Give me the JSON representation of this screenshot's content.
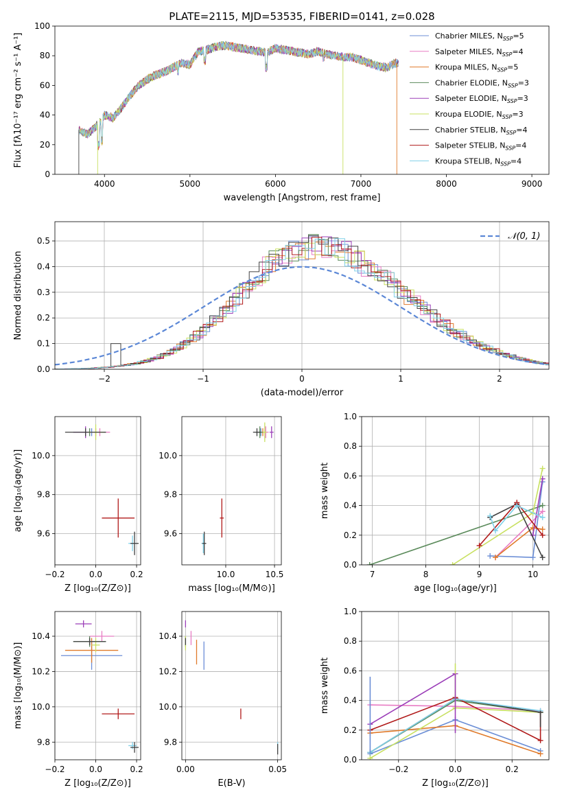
{
  "figure": {
    "title": "PLATE=2115, MJD=53535, FIBERID=0141, z=0.028"
  },
  "colors": [
    "#6b8ed6",
    "#e87cc4",
    "#e07a2a",
    "#5a8a5a",
    "#9b3eb8",
    "#c8e060",
    "#404040",
    "#b01818",
    "#7fd0e8"
  ],
  "legend": {
    "entries": [
      {
        "name": "Chabrier MILES, N",
        "sub": "SSP",
        "suffix": "=5"
      },
      {
        "name": "Salpeter MILES, N",
        "sub": "SSP",
        "suffix": "=4"
      },
      {
        "name": "Kroupa MILES, N",
        "sub": "SSP",
        "suffix": "=5"
      },
      {
        "name": "Chabrier ELODIE, N",
        "sub": "SSP",
        "suffix": "=3"
      },
      {
        "name": "Salpeter ELODIE, N",
        "sub": "SSP",
        "suffix": "=3"
      },
      {
        "name": "Kroupa ELODIE, N",
        "sub": "SSP",
        "suffix": "=3"
      },
      {
        "name": "Chabrier STELIB, N",
        "sub": "SSP",
        "suffix": "=4"
      },
      {
        "name": "Salpeter STELIB, N",
        "sub": "SSP",
        "suffix": "=4"
      },
      {
        "name": "Kroupa STELIB, N",
        "sub": "SSP",
        "suffix": "=4"
      }
    ]
  },
  "chart_data": [
    {
      "id": "spectrum",
      "type": "line",
      "xlabel": "wavelength [Angstrom, rest frame]",
      "ylabel": "Flux [fλ10⁻¹⁷ erg cm⁻² s⁻¹ A⁻¹]",
      "xlim": [
        3420,
        9200
      ],
      "ylim": [
        0,
        100
      ],
      "xticks": [
        "4000",
        "5000",
        "6000",
        "7000",
        "8000",
        "9000"
      ],
      "yticks": [
        "0",
        "20",
        "40",
        "60",
        "80",
        "100"
      ],
      "x": [
        3700,
        3800,
        3900,
        4000,
        4100,
        4200,
        4300,
        4400,
        4500,
        4600,
        4700,
        4800,
        4900,
        5000,
        5100,
        5200,
        5300,
        5400,
        5500,
        5600,
        5700,
        5800,
        5900,
        6000,
        6100,
        6200,
        6300,
        6400,
        6500,
        6600,
        6700,
        6800,
        6900,
        7000,
        7100,
        7200,
        7300,
        7400
      ],
      "y": [
        30,
        27,
        32,
        40,
        38,
        45,
        53,
        60,
        64,
        67,
        69,
        72,
        75,
        74,
        83,
        84,
        86,
        87,
        86,
        85,
        84,
        83,
        82,
        85,
        84,
        83,
        82,
        81,
        83,
        81,
        80,
        79,
        79,
        77,
        75,
        73,
        72,
        75
      ],
      "dropouts": [
        {
          "x": 3700,
          "series": 6
        },
        {
          "x": 3920,
          "series": 5
        },
        {
          "x": 6790,
          "series": 5
        },
        {
          "x": 7420,
          "series": 2
        }
      ]
    },
    {
      "id": "residuals",
      "type": "line",
      "xlabel": "(data-model)/error",
      "ylabel": "Normed distribution",
      "xlim": [
        -2.5,
        2.5
      ],
      "ylim": [
        0,
        0.575
      ],
      "xticks": [
        "−2",
        "−1",
        "0",
        "1",
        "2"
      ],
      "xtick_values": [
        -2,
        -1,
        0,
        1,
        2
      ],
      "yticks": [
        "0.0",
        "0.1",
        "0.2",
        "0.3",
        "0.4",
        "0.5"
      ],
      "ytick_values": [
        0,
        0.1,
        0.2,
        0.3,
        0.4,
        0.5
      ],
      "gaussian_label": "𝒩(0, 1)",
      "bin_width": 0.1
    },
    {
      "id": "age-vs-Z",
      "type": "scatter",
      "xlabel": "Z [log₁₀(Z/Z⊙)]",
      "ylabel": "age  [log₁₀(age/yr)]",
      "xlim": [
        -0.2,
        0.22
      ],
      "ylim": [
        9.44,
        10.2
      ],
      "xticks": [
        "−0.2",
        "0.0",
        "0.2"
      ],
      "xtick_values": [
        -0.2,
        0,
        0.2
      ],
      "yticks": [
        "9.6",
        "9.8",
        "10.0"
      ],
      "ytick_values": [
        9.6,
        9.8,
        10.0
      ],
      "points": [
        {
          "x": -0.02,
          "y": 10.12,
          "xerr": 0.06,
          "yerr": 0.02,
          "c": 0
        },
        {
          "x": 0.02,
          "y": 10.12,
          "xerr": 0.05,
          "yerr": 0.02,
          "c": 1
        },
        {
          "x": 0.0,
          "y": 10.12,
          "xerr": 0.04,
          "yerr": 0.02,
          "c": 2
        },
        {
          "x": -0.03,
          "y": 10.12,
          "xerr": 0.08,
          "yerr": 0.02,
          "c": 3
        },
        {
          "x": -0.05,
          "y": 10.12,
          "xerr": 0.06,
          "yerr": 0.03,
          "c": 4
        },
        {
          "x": 0.0,
          "y": 10.12,
          "xerr": 0.04,
          "yerr": 0.04,
          "c": 5
        },
        {
          "x": -0.05,
          "y": 10.12,
          "xerr": 0.1,
          "yerr": 0.02,
          "c": 6
        },
        {
          "x": 0.11,
          "y": 9.68,
          "xerr": 0.08,
          "yerr": 0.1,
          "c": 7
        },
        {
          "x": 0.18,
          "y": 9.55,
          "xerr": 0.02,
          "yerr": 0.04,
          "c": 8
        },
        {
          "x": 0.19,
          "y": 9.55,
          "xerr": 0.02,
          "yerr": 0.06,
          "c": 6
        }
      ]
    },
    {
      "id": "age-vs-mass",
      "type": "scatter",
      "xlabel": "mass [log₁₀(M/M⊙)]",
      "ylabel": "",
      "xlim": [
        9.55,
        10.57
      ],
      "ylim": [
        9.44,
        10.2
      ],
      "xticks": [
        "10.0",
        "10.5"
      ],
      "xtick_values": [
        10.0,
        10.5
      ],
      "yticks": [
        "9.6",
        "9.8",
        "10.0"
      ],
      "ytick_values": [
        9.6,
        9.8,
        10.0
      ],
      "points": [
        {
          "x": 10.36,
          "y": 10.12,
          "xerr": 0.05,
          "yerr": 0.02,
          "c": 0
        },
        {
          "x": 10.41,
          "y": 10.12,
          "xerr": 0.03,
          "yerr": 0.03,
          "c": 1
        },
        {
          "x": 10.38,
          "y": 10.12,
          "xerr": 0.03,
          "yerr": 0.02,
          "c": 2
        },
        {
          "x": 10.35,
          "y": 10.12,
          "xerr": 0.04,
          "yerr": 0.03,
          "c": 3
        },
        {
          "x": 10.47,
          "y": 10.12,
          "xerr": 0.02,
          "yerr": 0.03,
          "c": 4
        },
        {
          "x": 10.4,
          "y": 10.12,
          "xerr": 0.02,
          "yerr": 0.05,
          "c": 5
        },
        {
          "x": 10.32,
          "y": 10.12,
          "xerr": 0.04,
          "yerr": 0.02,
          "c": 6
        },
        {
          "x": 9.96,
          "y": 9.68,
          "xerr": 0.02,
          "yerr": 0.1,
          "c": 7
        },
        {
          "x": 9.77,
          "y": 9.55,
          "xerr": 0.02,
          "yerr": 0.05,
          "c": 8
        },
        {
          "x": 9.78,
          "y": 9.55,
          "xerr": 0.02,
          "yerr": 0.06,
          "c": 6
        }
      ]
    },
    {
      "id": "massweight-vs-age",
      "type": "line",
      "xlabel": "age  [log₁₀(age/yr)]",
      "ylabel": "mass weight",
      "xlim": [
        6.8,
        10.3
      ],
      "ylim": [
        0,
        1
      ],
      "xticks": [
        "7",
        "8",
        "9",
        "10"
      ],
      "xtick_values": [
        7,
        8,
        9,
        10
      ],
      "yticks": [
        "0.0",
        "0.2",
        "0.4",
        "0.6",
        "0.8",
        "1.0"
      ],
      "ytick_values": [
        0,
        0.2,
        0.4,
        0.6,
        0.8,
        1.0
      ],
      "series": [
        {
          "c": 0,
          "x": [
            9.2,
            10.0,
            10.18
          ],
          "y": [
            0.06,
            0.05,
            0.56
          ]
        },
        {
          "c": 1,
          "x": [
            9.3,
            10.18
          ],
          "y": [
            0.05,
            0.36
          ]
        },
        {
          "c": 2,
          "x": [
            9.3,
            10.0,
            10.18
          ],
          "y": [
            0.05,
            0.25,
            0.24
          ]
        },
        {
          "c": 3,
          "x": [
            6.95,
            10.18
          ],
          "y": [
            0.0,
            0.4
          ]
        },
        {
          "c": 4,
          "x": [
            10.0,
            10.18
          ],
          "y": [
            0.2,
            0.58
          ]
        },
        {
          "c": 5,
          "x": [
            8.5,
            10.0,
            10.18
          ],
          "y": [
            0.0,
            0.35,
            0.65
          ]
        },
        {
          "c": 6,
          "x": [
            9.2,
            9.7,
            10.18
          ],
          "y": [
            0.32,
            0.41,
            0.05
          ]
        },
        {
          "c": 7,
          "x": [
            9.0,
            9.7,
            10.18
          ],
          "y": [
            0.13,
            0.42,
            0.2
          ]
        },
        {
          "c": 8,
          "x": [
            9.2,
            9.3,
            9.7,
            10.18
          ],
          "y": [
            0.33,
            0.23,
            0.4,
            0.32
          ]
        }
      ]
    },
    {
      "id": "mass-vs-Z",
      "type": "scatter",
      "xlabel": "Z [log₁₀(Z/Z⊙)]",
      "ylabel": "mass [log₁₀(M/M⊙)]",
      "xlim": [
        -0.2,
        0.22
      ],
      "ylim": [
        9.7,
        10.54
      ],
      "xticks": [
        "−0.2",
        "0.0",
        "0.2"
      ],
      "xtick_values": [
        -0.2,
        0,
        0.2
      ],
      "yticks": [
        "9.8",
        "10.0",
        "10.2",
        "10.4"
      ],
      "ytick_values": [
        9.8,
        10.0,
        10.2,
        10.4
      ],
      "points": [
        {
          "x": -0.02,
          "y": 10.29,
          "xerr": 0.15,
          "yerr": 0.08,
          "c": 0
        },
        {
          "x": 0.03,
          "y": 10.4,
          "xerr": 0.06,
          "yerr": 0.03,
          "c": 1
        },
        {
          "x": -0.02,
          "y": 10.32,
          "xerr": 0.13,
          "yerr": 0.07,
          "c": 2
        },
        {
          "x": -0.03,
          "y": 10.37,
          "xerr": 0.08,
          "yerr": 0.03,
          "c": 3
        },
        {
          "x": -0.06,
          "y": 10.47,
          "xerr": 0.04,
          "yerr": 0.02,
          "c": 4
        },
        {
          "x": 0.0,
          "y": 10.35,
          "xerr": 0.02,
          "yerr": 0.04,
          "c": 5
        },
        {
          "x": -0.03,
          "y": 10.37,
          "xerr": 0.08,
          "yerr": 0.02,
          "c": 6
        },
        {
          "x": 0.11,
          "y": 9.96,
          "xerr": 0.08,
          "yerr": 0.03,
          "c": 7
        },
        {
          "x": 0.18,
          "y": 9.78,
          "xerr": 0.02,
          "yerr": 0.02,
          "c": 8
        },
        {
          "x": 0.19,
          "y": 9.77,
          "xerr": 0.02,
          "yerr": 0.03,
          "c": 6
        }
      ]
    },
    {
      "id": "mass-vs-EBV",
      "type": "scatter",
      "xlabel": "E(B-V)",
      "ylabel": "",
      "xlim": [
        -0.002,
        0.052
      ],
      "ylim": [
        9.7,
        10.54
      ],
      "xticks": [
        "0.00",
        "0.05"
      ],
      "xtick_values": [
        0,
        0.05
      ],
      "yticks": [
        "9.8",
        "10.0",
        "10.2",
        "10.4"
      ],
      "ytick_values": [
        9.8,
        10.0,
        10.2,
        10.4
      ],
      "points": [
        {
          "x": 0.01,
          "y": 10.29,
          "xerr": 0,
          "yerr": 0.08,
          "c": 0
        },
        {
          "x": 0.003,
          "y": 10.39,
          "xerr": 0,
          "yerr": 0.04,
          "c": 1
        },
        {
          "x": 0.006,
          "y": 10.31,
          "xerr": 0,
          "yerr": 0.07,
          "c": 2
        },
        {
          "x": 0.0,
          "y": 10.37,
          "xerr": 0,
          "yerr": 0.03,
          "c": 3
        },
        {
          "x": 0.0,
          "y": 10.47,
          "xerr": 0,
          "yerr": 0.02,
          "c": 4
        },
        {
          "x": 0.0,
          "y": 10.36,
          "xerr": 0,
          "yerr": 0.04,
          "c": 5
        },
        {
          "x": 0.0,
          "y": 10.37,
          "xerr": 0,
          "yerr": 0.02,
          "c": 6
        },
        {
          "x": 0.03,
          "y": 9.96,
          "xerr": 0,
          "yerr": 0.03,
          "c": 7
        },
        {
          "x": 0.05,
          "y": 9.78,
          "xerr": 0,
          "yerr": 0.02,
          "c": 8
        },
        {
          "x": 0.05,
          "y": 9.76,
          "xerr": 0,
          "yerr": 0.03,
          "c": 6
        }
      ]
    },
    {
      "id": "massweight-vs-Z",
      "type": "line",
      "xlabel": "Z [log₁₀(Z/Z⊙)]",
      "ylabel": "mass weight",
      "xlim": [
        -0.33,
        0.33
      ],
      "ylim": [
        0,
        1
      ],
      "xticks": [
        "−0.2",
        "0.0",
        "0.2"
      ],
      "xtick_values": [
        -0.2,
        0,
        0.2
      ],
      "yticks": [
        "0.0",
        "0.2",
        "0.4",
        "0.6",
        "0.8",
        "1.0"
      ],
      "ytick_values": [
        0,
        0.2,
        0.4,
        0.6,
        0.8,
        1.0
      ],
      "series": [
        {
          "c": 0,
          "x": [
            -0.3,
            0.0,
            0.3
          ],
          "y": [
            0.04,
            0.27,
            0.06
          ]
        },
        {
          "c": 1,
          "x": [
            -0.3,
            0.0,
            0.3
          ],
          "y": [
            0.37,
            0.36,
            0.33
          ]
        },
        {
          "c": 2,
          "x": [
            -0.3,
            0.0,
            0.3
          ],
          "y": [
            0.18,
            0.23,
            0.04
          ]
        },
        {
          "c": 3,
          "x": [
            -0.3,
            0.0,
            0.3
          ],
          "y": [
            0.05,
            0.4,
            0.32
          ]
        },
        {
          "c": 4,
          "x": [
            -0.3,
            0.0
          ],
          "y": [
            0.24,
            0.58
          ]
        },
        {
          "c": 5,
          "x": [
            -0.3,
            0.0,
            0.3
          ],
          "y": [
            0.01,
            0.35,
            0.32
          ]
        },
        {
          "c": 6,
          "x": [
            -0.3,
            0.0,
            0.3
          ],
          "y": [
            0.05,
            0.41,
            0.32
          ]
        },
        {
          "c": 7,
          "x": [
            -0.3,
            0.0,
            0.3
          ],
          "y": [
            0.2,
            0.42,
            0.13
          ]
        },
        {
          "c": 8,
          "x": [
            -0.3,
            0.0,
            0.3
          ],
          "y": [
            0.05,
            0.41,
            0.33
          ]
        }
      ],
      "vlines": [
        {
          "x": -0.3,
          "c": 0,
          "y": [
            0.04,
            0.56
          ]
        },
        {
          "x": 0.0,
          "c": 5,
          "y": [
            0.35,
            0.65
          ]
        },
        {
          "x": 0.0,
          "c": 4,
          "y": [
            0.18,
            0.58
          ]
        },
        {
          "x": 0.3,
          "c": 7,
          "y": [
            0.13,
            0.33
          ]
        },
        {
          "x": 0.3,
          "c": 6,
          "y": [
            0.22,
            0.33
          ]
        }
      ]
    }
  ]
}
